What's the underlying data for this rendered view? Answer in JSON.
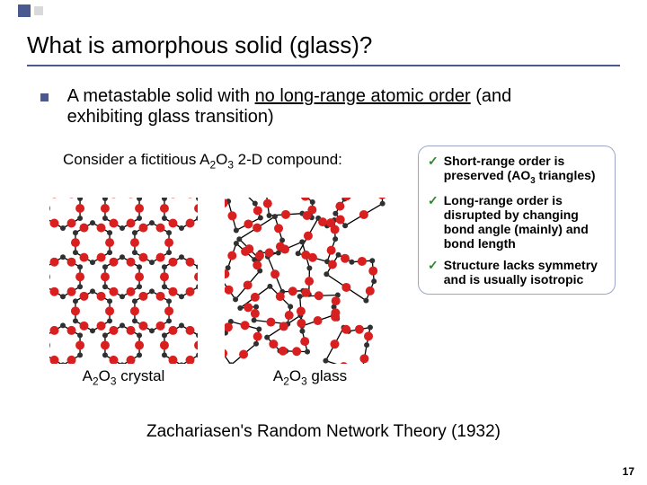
{
  "title": "What is amorphous solid (glass)?",
  "main_bullet_pre": "A metastable solid with ",
  "main_bullet_ul": "no long-range atomic order",
  "main_bullet_post": " (and exhibiting glass transition)",
  "sub_line_pre": "Consider a fictitious A",
  "sub_line_mid": "O",
  "sub_line_post": " 2-D compound:",
  "crystal_label_pre": "A",
  "crystal_label_mid": "O",
  "crystal_label_post": " crystal",
  "glass_label_pre": "A",
  "glass_label_mid": "O",
  "glass_label_post": " glass",
  "check1_pre": "Short-range order is preserved (AO",
  "check1_post": " triangles)",
  "check2": "Long-range order is disrupted by changing bond angle (mainly) and bond length",
  "check3": "Structure lacks symmetry and is usually isotropic",
  "footer": "Zachariasen's Random Network Theory (1932)",
  "page": "17",
  "colors": {
    "accent": "#4a5a90",
    "node_a": "#d92020",
    "node_o": "#303030",
    "check": "#2a8a2a"
  }
}
